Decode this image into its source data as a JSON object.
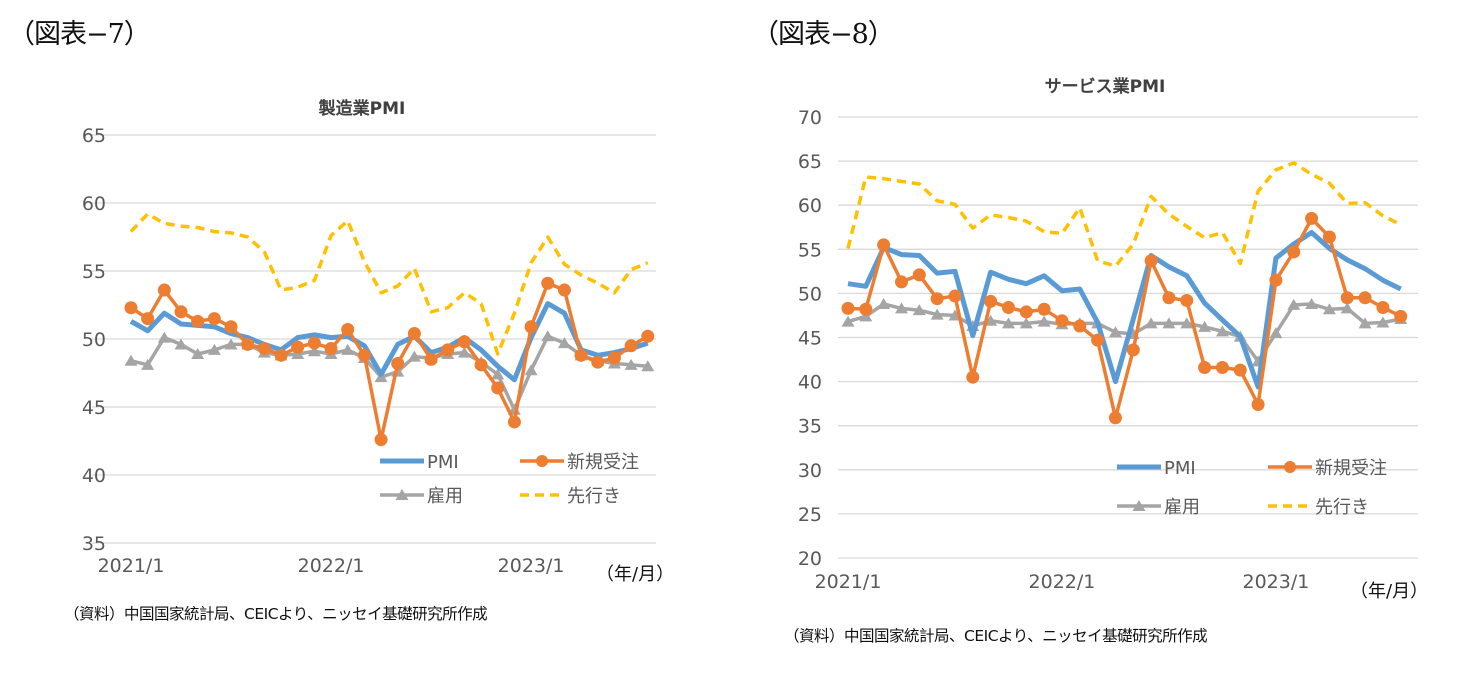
{
  "figures": [
    {
      "label": "（図表−7）",
      "source": "（資料）中国国家統計局、CEICより、ニッセイ基礎研究所作成"
    },
    {
      "label": "（図表−8）",
      "source": "（資料）中国国家統計局、CEICより、ニッセイ基礎研究所作成"
    }
  ],
  "colors": {
    "PMI": "#5b9bd5",
    "新規受注": "#ed7d31",
    "雇用": "#a5a5a5",
    "先行き": "#ffc000",
    "grid": "#d9d9d9"
  },
  "chart_data": [
    {
      "type": "line",
      "title": "製造業PMI",
      "xlabel": "(年/月)",
      "ylabel": "",
      "ylim": [
        35,
        65
      ],
      "yticks": [
        35,
        40,
        45,
        50,
        55,
        60,
        65
      ],
      "xtick_labels": [
        "2021/1",
        "2022/1",
        "2023/1"
      ],
      "xtick_index": [
        0,
        12,
        24
      ],
      "grid": true,
      "legend_position": "bottom-right",
      "x": [
        "2021/1",
        "2021/2",
        "2021/3",
        "2021/4",
        "2021/5",
        "2021/6",
        "2021/7",
        "2021/8",
        "2021/9",
        "2021/10",
        "2021/11",
        "2021/12",
        "2022/1",
        "2022/2",
        "2022/3",
        "2022/4",
        "2022/5",
        "2022/6",
        "2022/7",
        "2022/8",
        "2022/9",
        "2022/10",
        "2022/11",
        "2022/12",
        "2023/1",
        "2023/2",
        "2023/3",
        "2023/4",
        "2023/5",
        "2023/6",
        "2023/7",
        "2023/8"
      ],
      "series": [
        {
          "name": "PMI",
          "style": "solid",
          "marker": "none",
          "values": [
            51.3,
            50.6,
            51.9,
            51.1,
            51.0,
            50.9,
            50.4,
            50.1,
            49.6,
            49.2,
            50.1,
            50.3,
            50.1,
            50.2,
            49.5,
            47.4,
            49.6,
            50.2,
            49.0,
            49.4,
            50.1,
            49.2,
            48.0,
            47.0,
            50.1,
            52.6,
            51.9,
            49.2,
            48.8,
            49.0,
            49.3,
            49.7
          ]
        },
        {
          "name": "新規受注",
          "style": "solid",
          "marker": "circle",
          "values": [
            52.3,
            51.5,
            53.6,
            52.0,
            51.3,
            51.5,
            50.9,
            49.6,
            49.3,
            48.8,
            49.4,
            49.7,
            49.3,
            50.7,
            48.8,
            42.6,
            48.2,
            50.4,
            48.5,
            49.2,
            49.8,
            48.1,
            46.4,
            43.9,
            50.9,
            54.1,
            53.6,
            48.8,
            48.3,
            48.6,
            49.5,
            50.2
          ]
        },
        {
          "name": "雇用",
          "style": "solid",
          "marker": "triangle",
          "values": [
            48.4,
            48.1,
            50.1,
            49.6,
            48.9,
            49.2,
            49.6,
            49.6,
            49.0,
            48.8,
            48.9,
            49.1,
            48.9,
            49.2,
            48.6,
            47.2,
            47.6,
            48.7,
            48.6,
            48.9,
            49.0,
            48.3,
            47.4,
            44.8,
            47.7,
            50.2,
            49.7,
            48.8,
            48.4,
            48.2,
            48.1,
            48.0
          ]
        },
        {
          "name": "先行き",
          "style": "dashed",
          "marker": "none",
          "values": [
            57.9,
            59.2,
            58.5,
            58.3,
            58.2,
            57.9,
            57.8,
            57.5,
            56.4,
            53.6,
            53.8,
            54.3,
            57.6,
            58.7,
            55.7,
            53.4,
            53.9,
            55.2,
            52.0,
            52.3,
            53.4,
            52.6,
            48.9,
            51.9,
            55.6,
            57.5,
            55.5,
            54.7,
            54.1,
            53.4,
            55.1,
            55.6
          ]
        }
      ]
    },
    {
      "type": "line",
      "title": "サービス業PMI",
      "xlabel": "(年/月)",
      "ylabel": "",
      "ylim": [
        20,
        70
      ],
      "yticks": [
        20,
        25,
        30,
        35,
        40,
        45,
        50,
        55,
        60,
        65,
        70
      ],
      "xtick_labels": [
        "2021/1",
        "2022/1",
        "2023/1"
      ],
      "xtick_index": [
        0,
        12,
        24
      ],
      "grid": true,
      "legend_position": "bottom-right",
      "x": [
        "2021/1",
        "2021/2",
        "2021/3",
        "2021/4",
        "2021/5",
        "2021/6",
        "2021/7",
        "2021/8",
        "2021/9",
        "2021/10",
        "2021/11",
        "2021/12",
        "2022/1",
        "2022/2",
        "2022/3",
        "2022/4",
        "2022/5",
        "2022/6",
        "2022/7",
        "2022/8",
        "2022/9",
        "2022/10",
        "2022/11",
        "2022/12",
        "2023/1",
        "2023/2",
        "2023/3",
        "2023/4",
        "2023/5",
        "2023/6",
        "2023/7",
        "2023/8"
      ],
      "series": [
        {
          "name": "PMI",
          "style": "solid",
          "marker": "none",
          "values": [
            51.1,
            50.8,
            55.2,
            54.4,
            54.3,
            52.3,
            52.5,
            45.2,
            52.4,
            51.6,
            51.1,
            52.0,
            50.3,
            50.5,
            46.7,
            40.0,
            47.1,
            54.3,
            53.0,
            52.0,
            48.9,
            47.0,
            45.1,
            39.4,
            54.0,
            55.6,
            56.9,
            55.1,
            53.8,
            52.8,
            51.5,
            50.5
          ]
        },
        {
          "name": "新規受注",
          "style": "solid",
          "marker": "circle",
          "values": [
            48.3,
            48.2,
            55.5,
            51.3,
            52.1,
            49.4,
            49.7,
            40.5,
            49.1,
            48.4,
            47.9,
            48.2,
            46.9,
            46.3,
            44.7,
            35.9,
            43.6,
            53.7,
            49.5,
            49.2,
            41.6,
            41.6,
            41.3,
            37.4,
            51.5,
            54.7,
            58.5,
            56.4,
            49.5,
            49.5,
            48.4,
            47.4
          ]
        },
        {
          "name": "雇用",
          "style": "solid",
          "marker": "triangle",
          "values": [
            46.8,
            47.4,
            48.8,
            48.3,
            48.1,
            47.6,
            47.5,
            46.3,
            46.9,
            46.6,
            46.6,
            46.8,
            46.5,
            46.6,
            46.6,
            45.6,
            45.4,
            46.6,
            46.6,
            46.6,
            46.2,
            45.7,
            45.1,
            42.3,
            45.5,
            48.7,
            48.8,
            48.2,
            48.3,
            46.6,
            46.7,
            47.1
          ]
        },
        {
          "name": "先行き",
          "style": "dashed",
          "marker": "none",
          "values": [
            55.1,
            63.2,
            63.0,
            62.7,
            62.4,
            60.5,
            60.1,
            57.4,
            58.9,
            58.6,
            58.2,
            57.0,
            56.8,
            59.7,
            53.7,
            53.1,
            55.6,
            61.0,
            59.0,
            57.6,
            56.3,
            56.9,
            53.4,
            61.6,
            64.0,
            64.8,
            63.5,
            62.5,
            60.2,
            60.3,
            58.8,
            57.8
          ]
        }
      ]
    }
  ]
}
